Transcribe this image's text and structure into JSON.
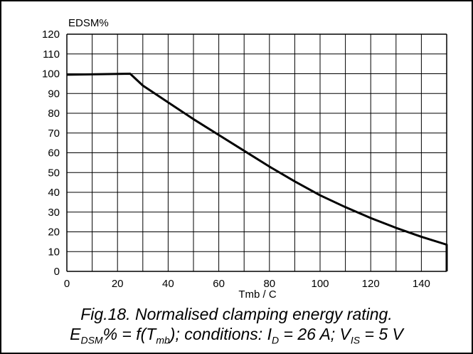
{
  "chart_data": {
    "type": "line",
    "ylabel": "EDSM%",
    "xlabel": "Tmb /  C",
    "x_ticks": [
      0,
      20,
      40,
      60,
      80,
      100,
      120,
      140
    ],
    "y_ticks": [
      0,
      10,
      20,
      30,
      40,
      50,
      60,
      70,
      80,
      90,
      100,
      110,
      120
    ],
    "xlim": [
      0,
      150
    ],
    "ylim": [
      0,
      120
    ],
    "grid": true,
    "series": [
      {
        "x": [
          0,
          25,
          30,
          40,
          50,
          60,
          70,
          80,
          90,
          100,
          110,
          120,
          130,
          140,
          150,
          150
        ],
        "y": [
          99.5,
          100,
          94,
          85.5,
          77,
          69,
          61,
          53,
          45.5,
          38.5,
          32.5,
          27,
          22,
          17.5,
          13.5,
          0
        ],
        "color": "#000000"
      }
    ]
  },
  "caption": {
    "line1": "Fig.18.   Normalised clamping energy rating.",
    "l2_e": "E",
    "l2_e_sub": "DSM",
    "l2_mid": "% = f(T",
    "l2_t_sub": "mb",
    "l2_cond": "); conditions: I",
    "l2_i_sub": "D",
    "l2_val": " = 26 A; V",
    "l2_v_sub": "IS",
    "l2_end": " = 5 V"
  }
}
